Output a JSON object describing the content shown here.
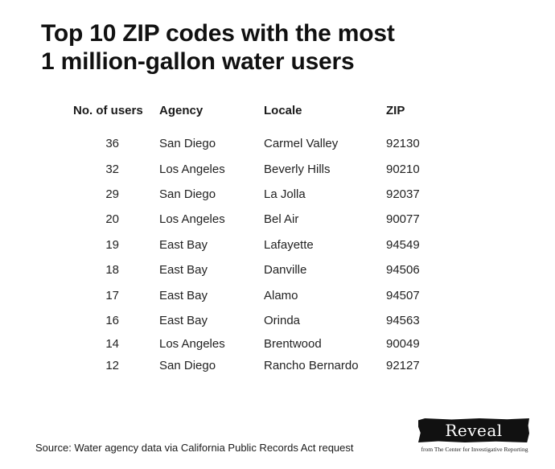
{
  "title": {
    "line1": "Top 10 ZIP codes with the most",
    "line2": "1 million-gallon water users"
  },
  "chart_data": {
    "type": "table",
    "title": "Top 10 ZIP codes with the most 1 million-gallon water users",
    "columns": [
      "No. of users",
      "Agency",
      "Locale",
      "ZIP"
    ],
    "rows": [
      {
        "users": "36",
        "agency": "San Diego",
        "locale": "Carmel Valley",
        "zip": "92130"
      },
      {
        "users": "32",
        "agency": "Los Angeles",
        "locale": "Beverly Hills",
        "zip": "90210"
      },
      {
        "users": "29",
        "agency": "San Diego",
        "locale": "La Jolla",
        "zip": "92037"
      },
      {
        "users": "20",
        "agency": "Los Angeles",
        "locale": "Bel Air",
        "zip": "90077"
      },
      {
        "users": "19",
        "agency": "East Bay",
        "locale": "Lafayette",
        "zip": "94549"
      },
      {
        "users": "18",
        "agency": "East Bay",
        "locale": "Danville",
        "zip": "94506"
      },
      {
        "users": "17",
        "agency": "East Bay",
        "locale": "Alamo",
        "zip": "94507"
      },
      {
        "users": "16",
        "agency": "East Bay",
        "locale": "Orinda",
        "zip": "94563"
      },
      {
        "users": "14",
        "agency": "Los Angeles",
        "locale": "Brentwood",
        "zip": "90049"
      },
      {
        "users": "12",
        "agency": "San Diego",
        "locale": "Rancho Bernardo",
        "zip": "92127"
      }
    ]
  },
  "source": "Source: Water agency data via California Public Records Act request",
  "logo": {
    "wordmark": "Reveal",
    "tagline": "from The Center for Investigative Reporting"
  }
}
